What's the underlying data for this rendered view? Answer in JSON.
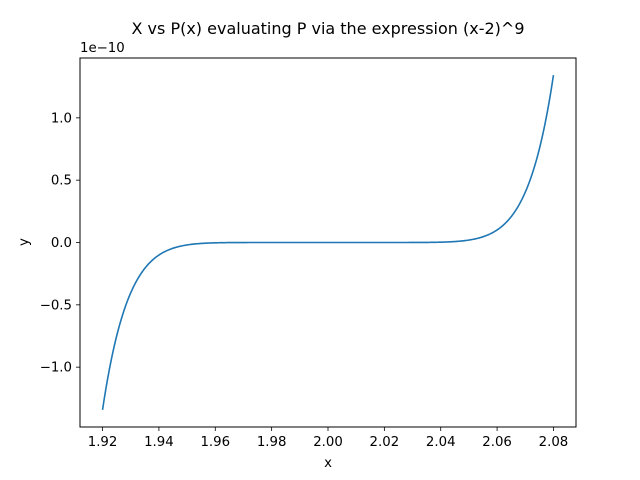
{
  "chart_data": {
    "type": "line",
    "title": "X vs P(x) evaluating P via the expression (x-2)^9",
    "xlabel": "x",
    "ylabel": "y",
    "offset_label": "1e−10",
    "xlim": [
      1.912,
      2.088
    ],
    "ylim": [
      -1.48,
      1.48
    ],
    "y_scale_factor": 1e-10,
    "x_ticks": [
      1.92,
      1.94,
      1.96,
      1.98,
      2.0,
      2.02,
      2.04,
      2.06,
      2.08
    ],
    "x_tick_labels": [
      "1.92",
      "1.94",
      "1.96",
      "1.98",
      "2.00",
      "2.02",
      "2.04",
      "2.06",
      "2.08"
    ],
    "y_ticks": [
      -1.0,
      -0.5,
      0.0,
      0.5,
      1.0
    ],
    "y_tick_labels": [
      "−1.0",
      "−0.5",
      "0.0",
      "0.5",
      "1.0"
    ],
    "grid": false,
    "series": [
      {
        "color": "#1f77b4",
        "x": [
          1.92,
          1.925,
          1.93,
          1.935,
          1.94,
          1.945,
          1.95,
          1.955,
          1.96,
          1.97,
          1.98,
          1.99,
          2.0,
          2.01,
          2.02,
          2.03,
          2.04,
          2.045,
          2.05,
          2.055,
          2.06,
          2.065,
          2.07,
          2.075,
          2.08
        ],
        "y": [
          -1.342,
          -0.751,
          -0.404,
          -0.207,
          -0.101,
          -0.046,
          -0.02,
          -0.0076,
          -0.0026,
          -0.0002,
          0.0,
          0.0,
          0.0,
          0.0,
          0.0,
          0.0002,
          0.0026,
          0.0076,
          0.02,
          0.046,
          0.101,
          0.207,
          0.404,
          0.751,
          1.342
        ]
      }
    ]
  }
}
